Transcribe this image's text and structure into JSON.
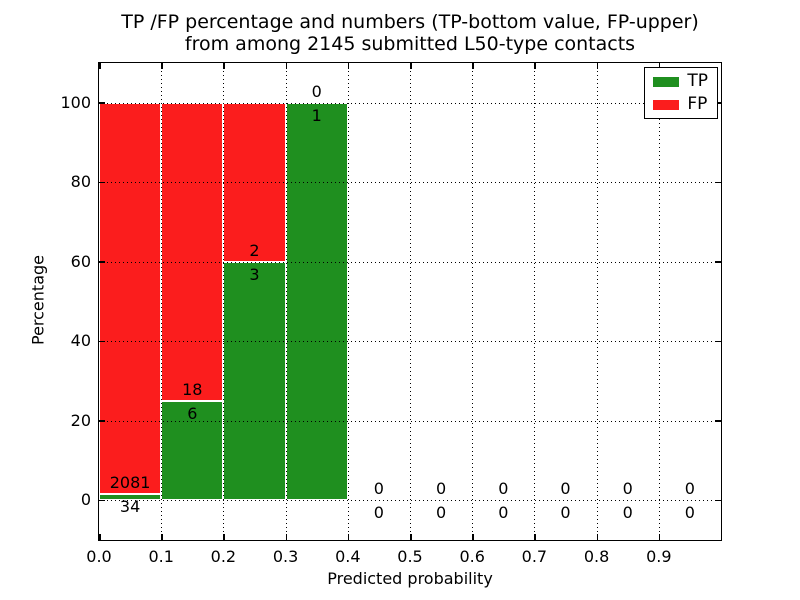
{
  "chart_data": {
    "type": "bar",
    "stacked": true,
    "title_lines": [
      "TP /FP percentage and numbers (TP-bottom value, FP-upper)",
      "from among 2145 submitted L50-type contacts"
    ],
    "xlabel": "Predicted probability",
    "ylabel": "Percentage",
    "xlim": [
      0.0,
      1.0
    ],
    "ylim": [
      -10,
      110
    ],
    "grid": true,
    "xticks": [
      {
        "label": "0.0",
        "value": 0.0
      },
      {
        "label": "0.1",
        "value": 0.1
      },
      {
        "label": "0.2",
        "value": 0.2
      },
      {
        "label": "0.3",
        "value": 0.3
      },
      {
        "label": "0.4",
        "value": 0.4
      },
      {
        "label": "0.5",
        "value": 0.5
      },
      {
        "label": "0.6",
        "value": 0.6
      },
      {
        "label": "0.7",
        "value": 0.7
      },
      {
        "label": "0.8",
        "value": 0.8
      },
      {
        "label": "0.9",
        "value": 0.9
      }
    ],
    "yticks": [
      {
        "label": "0",
        "value": 0
      },
      {
        "label": "20",
        "value": 20
      },
      {
        "label": "40",
        "value": 40
      },
      {
        "label": "60",
        "value": 60
      },
      {
        "label": "80",
        "value": 80
      },
      {
        "label": "100",
        "value": 100
      }
    ],
    "series": [
      {
        "name": "TP",
        "color": "#1f8f1f"
      },
      {
        "name": "FP",
        "color": "#fb1d1d"
      }
    ],
    "legend": {
      "position": "upper-right",
      "entries": [
        {
          "label": "TP",
          "color": "#1f8f1f"
        },
        {
          "label": "FP",
          "color": "#fb1d1d"
        }
      ]
    },
    "bins": [
      {
        "range": [
          0.0,
          0.1
        ],
        "tp": 34,
        "fp": 2081
      },
      {
        "range": [
          0.1,
          0.2
        ],
        "tp": 6,
        "fp": 18
      },
      {
        "range": [
          0.2,
          0.3
        ],
        "tp": 3,
        "fp": 2
      },
      {
        "range": [
          0.3,
          0.4
        ],
        "tp": 1,
        "fp": 0
      },
      {
        "range": [
          0.4,
          0.5
        ],
        "tp": 0,
        "fp": 0
      },
      {
        "range": [
          0.5,
          0.6
        ],
        "tp": 0,
        "fp": 0
      },
      {
        "range": [
          0.6,
          0.7
        ],
        "tp": 0,
        "fp": 0
      },
      {
        "range": [
          0.7,
          0.8
        ],
        "tp": 0,
        "fp": 0
      },
      {
        "range": [
          0.8,
          0.9
        ],
        "tp": 0,
        "fp": 0
      },
      {
        "range": [
          0.9,
          1.0
        ],
        "tp": 0,
        "fp": 0
      }
    ]
  }
}
